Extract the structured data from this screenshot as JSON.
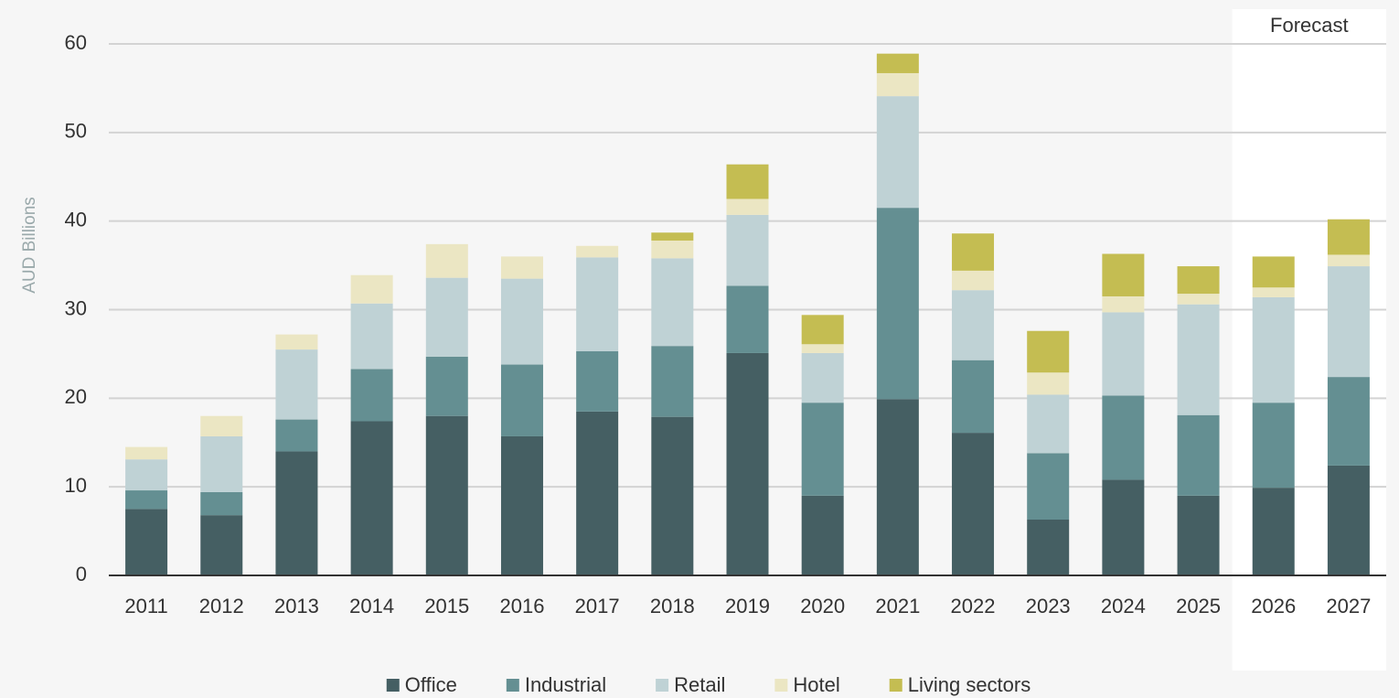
{
  "chart_data": {
    "type": "stacked_bar",
    "y_label": "AUD Billions",
    "forecast_label": "Forecast",
    "forecast_categories": [
      "2026",
      "2027"
    ],
    "categories": [
      "2011",
      "2012",
      "2013",
      "2014",
      "2015",
      "2016",
      "2017",
      "2018",
      "2019",
      "2020",
      "2021",
      "2022",
      "2023",
      "2024",
      "2025",
      "2026",
      "2027"
    ],
    "series": [
      {
        "name": "Office",
        "color": "#455f63",
        "values": [
          7.5,
          6.8,
          14.0,
          17.4,
          18.0,
          15.7,
          18.5,
          17.9,
          25.1,
          9.0,
          19.9,
          16.1,
          6.3,
          10.8,
          9.0,
          9.9,
          12.4
        ]
      },
      {
        "name": "Industrial",
        "color": "#648f92",
        "values": [
          2.1,
          2.6,
          3.6,
          5.9,
          6.7,
          8.1,
          6.8,
          8.0,
          7.6,
          10.5,
          21.6,
          8.2,
          7.5,
          9.5,
          9.1,
          9.6,
          10.0
        ]
      },
      {
        "name": "Retail",
        "color": "#bfd2d5",
        "values": [
          3.5,
          6.3,
          7.9,
          7.4,
          8.9,
          9.7,
          10.6,
          9.9,
          8.0,
          5.6,
          12.6,
          7.9,
          6.6,
          9.4,
          12.5,
          11.9,
          12.5
        ]
      },
      {
        "name": "Hotel",
        "color": "#ebe6c3",
        "values": [
          1.4,
          2.3,
          1.7,
          3.2,
          3.8,
          2.5,
          1.3,
          2.0,
          1.8,
          1.0,
          2.6,
          2.2,
          2.5,
          1.8,
          1.2,
          1.1,
          1.3
        ]
      },
      {
        "name": "Living sectors",
        "color": "#c4bd52",
        "values": [
          0,
          0,
          0,
          0,
          0,
          0,
          0,
          0.9,
          3.9,
          3.3,
          2.2,
          4.2,
          4.7,
          4.8,
          3.1,
          3.5,
          4.0
        ]
      }
    ],
    "ylim": [
      0,
      60
    ],
    "yticks": [
      0,
      10,
      20,
      30,
      40,
      50,
      60
    ],
    "grid": true,
    "legend": "bottom"
  }
}
